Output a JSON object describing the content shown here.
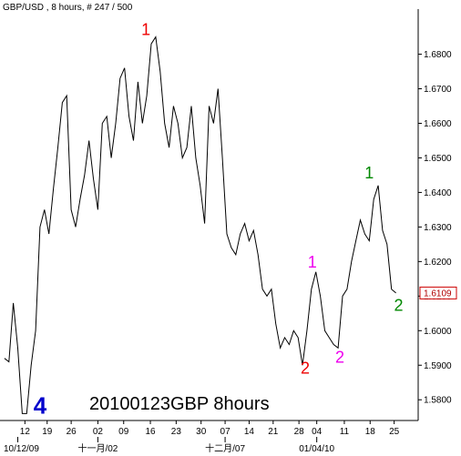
{
  "header": "GBP/USD , 8 hours, # 247 / 500",
  "watermark": "20100123GBP 8hours",
  "last_price_label": "1.6109",
  "colors": {
    "red": "#ee0000",
    "magenta": "#ee00ee",
    "green": "#008800",
    "blue": "#0000cc",
    "line": "#000000",
    "last_box": "#cc0000"
  },
  "wave_labels": [
    {
      "text": "1",
      "color": "red",
      "x": 16.4,
      "y": 1.6855,
      "size": "normal"
    },
    {
      "text": "2",
      "color": "red",
      "x": 34.3,
      "y": 1.5875,
      "size": "normal"
    },
    {
      "text": "1",
      "color": "magenta",
      "x": 35.1,
      "y": 1.6182,
      "size": "normal"
    },
    {
      "text": "2",
      "color": "magenta",
      "x": 38.2,
      "y": 1.5907,
      "size": "normal"
    },
    {
      "text": "1",
      "color": "green",
      "x": 41.5,
      "y": 1.644,
      "size": "normal"
    },
    {
      "text": "2",
      "color": "green",
      "x": 44.8,
      "y": 1.6057,
      "size": "normal"
    },
    {
      "text": "4",
      "color": "blue",
      "x": 4.5,
      "y": 1.576,
      "size": "big"
    }
  ],
  "chart_data": {
    "type": "line",
    "title": "GBP/USD , 8 hours, # 247 / 500",
    "xlabel": "",
    "ylabel": "",
    "grid": false,
    "x_range": [
      0,
      47
    ],
    "ylim": [
      1.574,
      1.692
    ],
    "y_ticks": [
      {
        "value": 1.58,
        "label": "1.5800"
      },
      {
        "value": 1.59,
        "label": "1.5900"
      },
      {
        "value": 1.6,
        "label": "1.6000"
      },
      {
        "value": 1.61,
        "label": "1.6100"
      },
      {
        "value": 1.62,
        "label": "1.6200"
      },
      {
        "value": 1.63,
        "label": "1.6300"
      },
      {
        "value": 1.64,
        "label": "1.6400"
      },
      {
        "value": 1.65,
        "label": "1.6500"
      },
      {
        "value": 1.66,
        "label": "1.6600"
      },
      {
        "value": 1.67,
        "label": "1.6700"
      },
      {
        "value": 1.68,
        "label": "1.6800"
      }
    ],
    "x_ticks": [
      {
        "x": 2.8,
        "label": "12"
      },
      {
        "x": 5.3,
        "label": "19"
      },
      {
        "x": 8.0,
        "label": "26"
      },
      {
        "x": 11.0,
        "label": "02"
      },
      {
        "x": 13.9,
        "label": "09"
      },
      {
        "x": 16.9,
        "label": "16"
      },
      {
        "x": 19.8,
        "label": "23"
      },
      {
        "x": 22.6,
        "label": "30"
      },
      {
        "x": 25.3,
        "label": "07"
      },
      {
        "x": 28.0,
        "label": "14"
      },
      {
        "x": 30.7,
        "label": "21"
      },
      {
        "x": 33.6,
        "label": "28"
      },
      {
        "x": 35.6,
        "label": "04"
      },
      {
        "x": 38.7,
        "label": "11"
      },
      {
        "x": 41.6,
        "label": "18"
      },
      {
        "x": 44.3,
        "label": "25"
      }
    ],
    "x_major_labels": [
      {
        "x": 2.0,
        "label": "10/12/09"
      },
      {
        "x": 11.0,
        "label": "十一月/02"
      },
      {
        "x": 25.3,
        "label": "十二月/07"
      },
      {
        "x": 35.6,
        "label": "01/04/10"
      }
    ],
    "last_price": 1.6109,
    "series": [
      {
        "x": [
          0.5,
          1.0,
          1.5,
          2.0,
          2.5,
          3.0,
          3.5,
          4.0,
          4.5,
          5.0,
          5.5,
          6.0,
          6.5,
          7.0,
          7.5,
          8.0,
          8.5,
          9.0,
          9.5,
          10.0,
          10.5,
          11.0,
          11.5,
          12.0,
          12.5,
          13.0,
          13.5,
          14.0,
          14.5,
          15.0,
          15.5,
          16.0,
          16.5,
          17.0,
          17.5,
          18.0,
          18.5,
          19.0,
          19.5,
          20.0,
          20.5,
          21.0,
          21.5,
          22.0,
          22.5,
          23.0,
          23.5,
          24.0,
          24.5,
          25.0,
          25.5,
          26.0,
          26.5,
          27.0,
          27.5,
          28.0,
          28.5,
          29.0,
          29.5,
          30.0,
          30.5,
          31.0,
          31.5,
          32.0,
          32.5,
          33.0,
          33.5,
          34.0,
          34.5,
          35.0,
          35.5,
          36.0,
          36.5,
          37.0,
          37.5,
          38.0,
          38.5,
          39.0,
          39.5,
          40.0,
          40.5,
          41.0,
          41.5,
          42.0,
          42.5,
          43.0,
          43.5,
          44.0,
          44.5
        ],
        "values": [
          1.592,
          1.591,
          1.608,
          1.595,
          1.576,
          1.576,
          1.59,
          1.6,
          1.63,
          1.635,
          1.628,
          1.641,
          1.653,
          1.666,
          1.668,
          1.635,
          1.63,
          1.638,
          1.645,
          1.655,
          1.644,
          1.635,
          1.66,
          1.662,
          1.65,
          1.66,
          1.673,
          1.676,
          1.662,
          1.655,
          1.672,
          1.66,
          1.668,
          1.683,
          1.685,
          1.675,
          1.66,
          1.653,
          1.665,
          1.66,
          1.65,
          1.653,
          1.665,
          1.65,
          1.642,
          1.631,
          1.665,
          1.66,
          1.67,
          1.65,
          1.628,
          1.624,
          1.622,
          1.628,
          1.631,
          1.626,
          1.629,
          1.622,
          1.612,
          1.61,
          1.612,
          1.602,
          1.595,
          1.598,
          1.596,
          1.6,
          1.598,
          1.59,
          1.6,
          1.612,
          1.617,
          1.61,
          1.6,
          1.598,
          1.596,
          1.595,
          1.61,
          1.612,
          1.62,
          1.626,
          1.632,
          1.628,
          1.626,
          1.638,
          1.642,
          1.629,
          1.625,
          1.612,
          1.6109
        ]
      }
    ]
  }
}
